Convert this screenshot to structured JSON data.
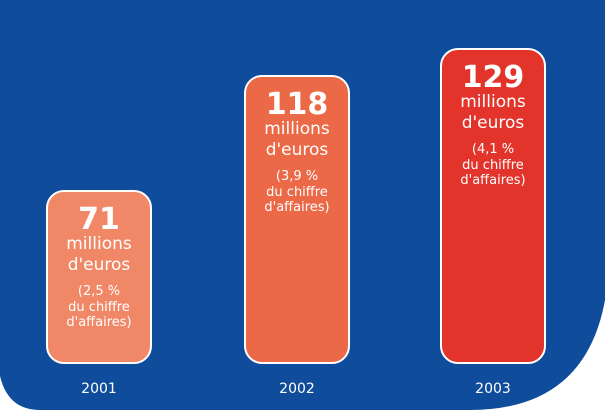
{
  "chart_data": {
    "type": "bar",
    "categories": [
      "2001",
      "2002",
      "2003"
    ],
    "values": [
      71,
      118,
      129
    ],
    "value_labels": [
      "71",
      "118",
      "129"
    ],
    "unit_label": [
      "millions",
      "d'euros"
    ],
    "notes": [
      [
        "(2,5 %",
        "du chiffre",
        "d'affaires)"
      ],
      [
        "(3,9 %",
        "du chiffre",
        "d'affaires)"
      ],
      [
        "(4,1 %",
        "du chiffre",
        "d'affaires)"
      ]
    ],
    "bar_colors": [
      "#F08868",
      "#EB6947",
      "#E3342B"
    ],
    "background_color": "#0F4C9B",
    "title": "",
    "xlabel": "",
    "ylabel": "",
    "grid": false
  }
}
